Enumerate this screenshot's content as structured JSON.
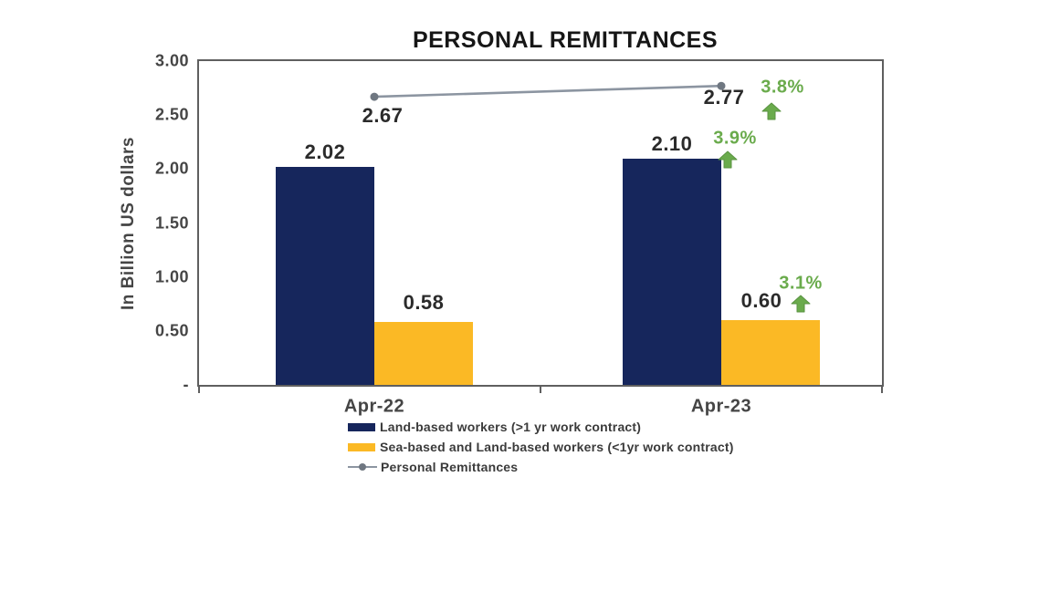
{
  "chart_data": {
    "type": "combo-bar-line",
    "title": "PERSONAL REMITTANCES",
    "ylabel": "In Billion US dollars",
    "ylim": [
      0,
      3.0
    ],
    "ytick_labels": [
      "3.00",
      "2.50",
      "2.00",
      "1.50",
      "1.00",
      "0.50",
      "-"
    ],
    "categories": [
      "Apr-22",
      "Apr-23"
    ],
    "series": [
      {
        "name": "Land-based workers (>1 yr work contract)",
        "type": "bar",
        "color": "#16265C",
        "values": [
          2.02,
          2.1
        ],
        "labels": [
          "2.02",
          "2.10"
        ]
      },
      {
        "name": "Sea-based and Land-based workers (<1yr work contract)",
        "type": "bar",
        "color": "#FBB925",
        "values": [
          0.58,
          0.6
        ],
        "labels": [
          "0.58",
          "0.60"
        ]
      },
      {
        "name": "Personal Remittances",
        "type": "line",
        "color": "#8C95A1",
        "marker_color": "#6F7781",
        "values": [
          2.67,
          2.77
        ],
        "labels": [
          "2.67",
          "2.77"
        ]
      }
    ],
    "growth_annotations": [
      {
        "label": "3.8%",
        "series": "Personal Remittances",
        "category": "Apr-23"
      },
      {
        "label": "3.9%",
        "series": "Land-based workers (>1 yr work contract)",
        "category": "Apr-23"
      },
      {
        "label": "3.1%",
        "series": "Sea-based and Land-based workers (<1yr work contract)",
        "category": "Apr-23"
      }
    ],
    "annotation_color": "#6AAB4C",
    "grid": false,
    "legend_position": "bottom-left"
  }
}
